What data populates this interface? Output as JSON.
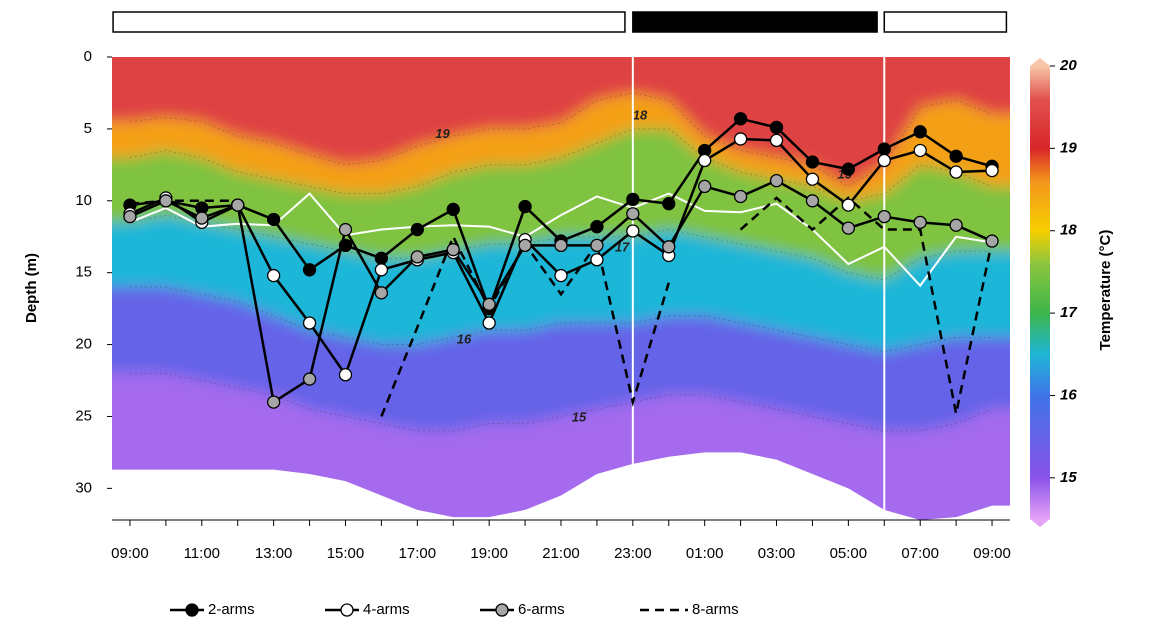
{
  "chart_data": {
    "type": "line",
    "ylabel": "Depth (m)",
    "colorbar_label": "Temperature (°C)",
    "categories": [
      "09:00",
      null,
      "11:00",
      null,
      "13:00",
      null,
      "15:00",
      null,
      "17:00",
      null,
      "19:00",
      null,
      "21:00",
      null,
      "23:00",
      null,
      "01:00",
      null,
      "03:00",
      null,
      "05:00",
      null,
      "07:00",
      null,
      "09:00"
    ],
    "ylim": [
      32.2,
      0
    ],
    "yticks": [
      0,
      5,
      10,
      15,
      20,
      25,
      30
    ],
    "series": [
      {
        "name": "2-arms",
        "color": "#000000",
        "marker": "#000000",
        "dash": false,
        "values": [
          10.3,
          10.0,
          10.5,
          10.3,
          11.3,
          14.8,
          13.1,
          14.0,
          12.0,
          10.6,
          17.5,
          10.4,
          12.8,
          11.8,
          9.9,
          10.2,
          6.5,
          4.3,
          4.9,
          7.3,
          7.8,
          6.4,
          5.2,
          6.9,
          7.6
        ]
      },
      {
        "name": "4-arms",
        "color": "#000000",
        "marker": "#ffffff",
        "dash": false,
        "values": [
          10.9,
          9.8,
          11.5,
          10.3,
          15.2,
          18.5,
          22.1,
          14.8,
          14.1,
          13.6,
          18.5,
          12.7,
          15.2,
          14.1,
          12.1,
          13.8,
          7.2,
          5.7,
          5.8,
          8.5,
          10.3,
          7.2,
          6.5,
          8.0,
          7.9
        ]
      },
      {
        "name": "6-arms",
        "color": "#000000",
        "marker": "#a6a6a6",
        "dash": false,
        "values": [
          11.1,
          10.0,
          11.2,
          10.3,
          24.0,
          22.4,
          12.0,
          16.4,
          13.9,
          13.4,
          17.2,
          13.1,
          13.1,
          13.1,
          10.9,
          13.2,
          9.0,
          9.7,
          8.6,
          10.0,
          11.9,
          11.1,
          11.5,
          11.7,
          12.8
        ]
      },
      {
        "name": "8-arms",
        "color": "#000000",
        "marker": null,
        "dash": true,
        "values": [
          10.2,
          10.0,
          10.0,
          10.0,
          null,
          null,
          null,
          25.0,
          18.8,
          12.5,
          17.5,
          13.0,
          16.5,
          13.0,
          24.0,
          15.7,
          null,
          12.0,
          9.8,
          12.0,
          9.8,
          12.0,
          12.0,
          24.8,
          12.8
        ]
      }
    ],
    "white_line": {
      "color": "#ffffff",
      "values": [
        11.5,
        10.5,
        11.8,
        11.6,
        11.7,
        9.5,
        12.4,
        12.0,
        11.8,
        11.7,
        11.8,
        12.5,
        11.0,
        9.7,
        10.5,
        9.5,
        10.7,
        10.8,
        10.2,
        12.0,
        14.4,
        13.2,
        15.9,
        12.5,
        12.9
      ]
    },
    "vertical_lines": [
      14,
      21
    ],
    "photoperiod": [
      {
        "color": "#ffffff",
        "from": -0.47,
        "to": 13.78
      },
      {
        "color": "#000000",
        "from": 14.0,
        "to": 20.8
      },
      {
        "color": "#ffffff",
        "from": 21.0,
        "to": 24.4
      }
    ],
    "isotherms": [
      {
        "temp": 19,
        "depth": [
          4.5,
          4.2,
          4.5,
          5.5,
          6.0,
          6.8,
          7.5,
          7.2,
          6.2,
          5.5,
          5.0,
          5.0,
          4.6,
          3.0,
          2.5,
          3.0,
          5.5,
          6.5,
          7.0,
          7.5,
          9.0,
          7.5,
          3.5,
          3.0,
          4.0
        ]
      },
      {
        "temp": 18,
        "depth": [
          7.0,
          6.5,
          7.0,
          8.0,
          8.5,
          9.0,
          9.5,
          9.5,
          9.0,
          8.0,
          7.5,
          7.5,
          7.0,
          6.0,
          5.0,
          5.0,
          7.0,
          8.0,
          8.5,
          9.0,
          10.0,
          9.5,
          7.5,
          8.0,
          9.0
        ]
      },
      {
        "temp": 17,
        "depth": [
          11.5,
          11.0,
          11.5,
          12.0,
          12.5,
          13.0,
          13.5,
          14.0,
          14.0,
          13.5,
          13.0,
          13.0,
          12.5,
          12.5,
          12.5,
          12.0,
          12.5,
          13.0,
          13.5,
          14.0,
          15.0,
          15.5,
          14.0,
          13.5,
          13.5
        ]
      },
      {
        "temp": 16,
        "depth": [
          16.0,
          16.0,
          16.5,
          17.0,
          18.0,
          19.0,
          19.5,
          20.0,
          20.0,
          19.5,
          19.0,
          19.0,
          18.5,
          18.5,
          18.5,
          18.0,
          18.0,
          18.5,
          19.0,
          19.5,
          20.0,
          20.5,
          20.0,
          19.5,
          19.5
        ]
      },
      {
        "temp": 15,
        "depth": [
          22.0,
          22.0,
          22.5,
          23.0,
          23.5,
          24.5,
          25.0,
          25.5,
          26.0,
          26.0,
          25.5,
          25.5,
          25.0,
          24.5,
          24.0,
          23.5,
          23.5,
          24.0,
          24.5,
          25.0,
          25.5,
          26.0,
          26.0,
          25.5,
          24.5
        ]
      }
    ],
    "bottom_depth": [
      28.7,
      28.7,
      28.7,
      28.7,
      28.7,
      29.0,
      29.5,
      30.5,
      31.5,
      32.0,
      32.0,
      31.5,
      30.5,
      29.0,
      28.3,
      27.8,
      27.5,
      27.5,
      28.0,
      29.0,
      30.0,
      31.5,
      32.2,
      32.0,
      31.2
    ],
    "contour_labels": [
      "19",
      "18",
      "17",
      "16",
      "15",
      "19"
    ],
    "clim": [
      14.5,
      20
    ],
    "cticks": [
      15,
      16,
      17,
      18,
      19,
      20
    ],
    "colorscale": [
      [
        14.5,
        "#e4a3f7"
      ],
      [
        15,
        "#8a52e8"
      ],
      [
        16,
        "#3f74e8"
      ],
      [
        16.5,
        "#1fb6d8"
      ],
      [
        17,
        "#3cb54a"
      ],
      [
        17.6,
        "#8cc63f"
      ],
      [
        18,
        "#f6cf00"
      ],
      [
        18.6,
        "#f3961c"
      ],
      [
        19,
        "#d8262a"
      ],
      [
        19.6,
        "#e2524f"
      ],
      [
        20,
        "#f7c6a8"
      ]
    ]
  }
}
